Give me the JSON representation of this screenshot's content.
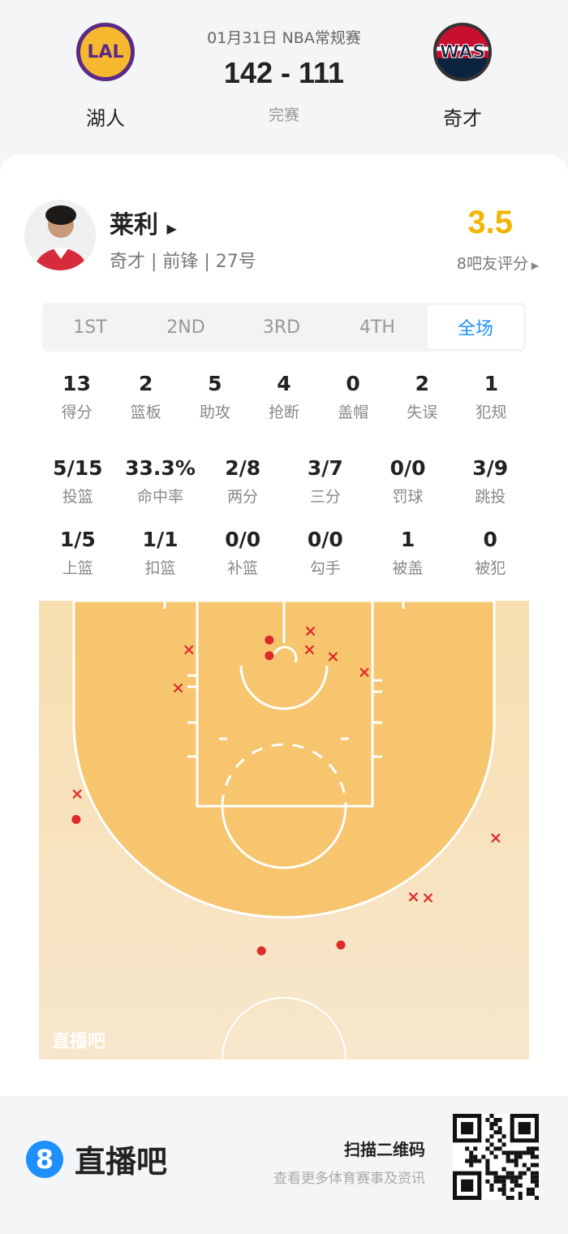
{
  "header": {
    "date_league": "01月31日 NBA常规赛",
    "score": "142 - 111",
    "status": "完赛",
    "home": {
      "abbr": "LAL",
      "name": "湖人"
    },
    "away": {
      "abbr": "WAS",
      "name": "奇才"
    }
  },
  "player": {
    "name": "莱利",
    "info": "奇才 | 前锋 | 27号",
    "rating": "3.5",
    "rating_label": "8吧友评分"
  },
  "colors": {
    "accent": "#1e90ff",
    "rating": "#f2b500",
    "shot": "#e02a2a",
    "court_inner": "#f6c56e",
    "court_outer": "#f8e2bd"
  },
  "tabs": [
    {
      "label": "1ST"
    },
    {
      "label": "2ND"
    },
    {
      "label": "3RD"
    },
    {
      "label": "4TH"
    },
    {
      "label": "全场",
      "active": true
    }
  ],
  "stats_rows": [
    [
      {
        "v": "13",
        "l": "得分"
      },
      {
        "v": "2",
        "l": "篮板"
      },
      {
        "v": "5",
        "l": "助攻"
      },
      {
        "v": "4",
        "l": "抢断"
      },
      {
        "v": "0",
        "l": "盖帽"
      },
      {
        "v": "2",
        "l": "失误"
      },
      {
        "v": "1",
        "l": "犯规"
      }
    ],
    [
      {
        "v": "5/15",
        "l": "投篮"
      },
      {
        "v": "33.3%",
        "l": "命中率"
      },
      {
        "v": "2/8",
        "l": "两分"
      },
      {
        "v": "3/7",
        "l": "三分"
      },
      {
        "v": "0/0",
        "l": "罚球"
      },
      {
        "v": "3/9",
        "l": "跳投"
      }
    ],
    [
      {
        "v": "1/5",
        "l": "上篮"
      },
      {
        "v": "1/1",
        "l": "扣篮"
      },
      {
        "v": "0/0",
        "l": "补篮"
      },
      {
        "v": "0/0",
        "l": "勾手"
      },
      {
        "v": "1",
        "l": "被盖"
      },
      {
        "v": "0",
        "l": "被犯"
      }
    ]
  ],
  "shot_chart": {
    "units": "ft (x from basket center, y from baseline)",
    "watermark": "直播吧",
    "shots": [
      {
        "x": -1.5,
        "y": 4.0,
        "made": true
      },
      {
        "x": -1.5,
        "y": 5.6,
        "made": true
      },
      {
        "x": -21.2,
        "y": 22.3,
        "made": true
      },
      {
        "x": -2.3,
        "y": 35.7,
        "made": true
      },
      {
        "x": 5.8,
        "y": 35.1,
        "made": true
      },
      {
        "x": 2.7,
        "y": 3.1,
        "made": false
      },
      {
        "x": 2.6,
        "y": 5.0,
        "made": false
      },
      {
        "x": 5.0,
        "y": 5.7,
        "made": false
      },
      {
        "x": 8.2,
        "y": 7.3,
        "made": false
      },
      {
        "x": -9.7,
        "y": 5.0,
        "made": false
      },
      {
        "x": -10.8,
        "y": 8.9,
        "made": false
      },
      {
        "x": -21.1,
        "y": 19.7,
        "made": false
      },
      {
        "x": 21.6,
        "y": 24.2,
        "made": false
      },
      {
        "x": 13.2,
        "y": 30.2,
        "made": false
      },
      {
        "x": 14.7,
        "y": 30.3,
        "made": false
      }
    ]
  },
  "footer": {
    "brand_badge": "8",
    "brand": "直播吧",
    "qr_title": "扫描二维码",
    "qr_sub": "查看更多体育赛事及资讯"
  }
}
